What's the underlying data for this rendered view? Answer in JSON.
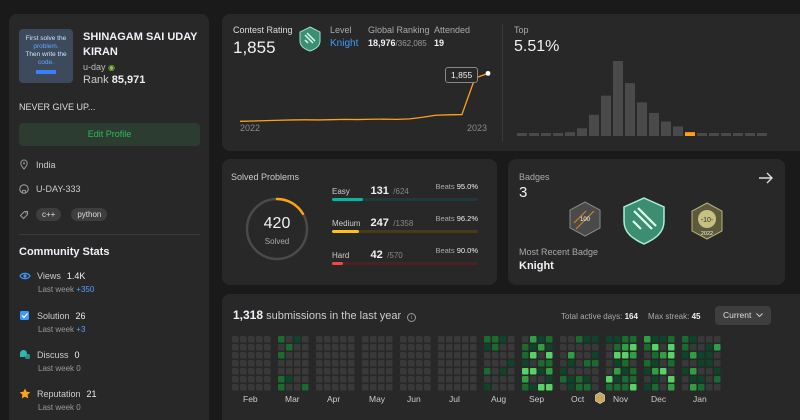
{
  "profile": {
    "avatar_lines": [
      "First solve the",
      "problem.",
      "Then write the",
      "code."
    ],
    "name_line1": "SHINAGAM SAI UDAY",
    "name_line2": "KIRAN",
    "username": "u-day",
    "rank_label": "Rank",
    "rank_value": "85,971",
    "bio": "NEVER GIVE UP...",
    "edit_label": "Edit Profile",
    "location": "India",
    "github": "U-DAY-333",
    "skills": [
      "c++",
      "python"
    ]
  },
  "community": {
    "title": "Community Stats",
    "stats": [
      {
        "label": "Views",
        "value": "1.4K",
        "last_week": "Last week",
        "delta": "+350",
        "icon": "eye-icon",
        "color": "#3b9cff"
      },
      {
        "label": "Solution",
        "value": "26",
        "last_week": "Last week",
        "delta": "+3",
        "icon": "solution-icon",
        "color": "#3b9cff"
      },
      {
        "label": "Discuss",
        "value": "0",
        "last_week": "Last week",
        "delta": "0",
        "icon": "discuss-icon",
        "color": "#2cbbb1"
      },
      {
        "label": "Reputation",
        "value": "21",
        "last_week": "Last week",
        "delta": "0",
        "icon": "star-icon",
        "color": "#ffa116"
      }
    ]
  },
  "contest": {
    "rating_label": "Contest Rating",
    "rating_value": "1,855",
    "level_label": "Level",
    "level_value": "Knight",
    "global_label": "Global Ranking",
    "global_rank": "18,976",
    "global_total": "/362,085",
    "attended_label": "Attended",
    "attended_value": "19",
    "tooltip": "1,855",
    "x_start": "2022",
    "x_end": "2023",
    "rating_series": [
      1500,
      1502,
      1505,
      1508,
      1510,
      1511,
      1510,
      1512,
      1514,
      1513,
      1515,
      1516,
      1514,
      1518,
      1530,
      1545,
      1548,
      1550,
      1820,
      1855
    ],
    "top_label": "Top",
    "top_value": "5.51%",
    "top_hist": [
      3,
      3,
      3,
      3,
      4,
      8,
      22,
      42,
      78,
      55,
      35,
      24,
      15,
      10,
      4,
      3,
      3,
      3,
      3,
      3,
      3
    ],
    "top_highlight_index": 14
  },
  "solved": {
    "title": "Solved Problems",
    "total": "420",
    "total_label": "Solved",
    "ring_fraction": 0.165,
    "difficulties": [
      {
        "label": "Easy",
        "solved": "131",
        "total": "/624",
        "beats_label": "Beats",
        "beats": "95.0%",
        "fraction": 0.21,
        "color": "#00b8a3",
        "track": "#1f3b37"
      },
      {
        "label": "Medium",
        "solved": "247",
        "total": "/1358",
        "beats_label": "Beats",
        "beats": "96.2%",
        "fraction": 0.182,
        "color": "#ffc01e",
        "track": "#4a3b16"
      },
      {
        "label": "Hard",
        "solved": "42",
        "total": "/570",
        "beats_label": "Beats",
        "beats": "90.0%",
        "fraction": 0.074,
        "color": "#ef4743",
        "track": "#4a2222"
      }
    ]
  },
  "badges": {
    "title": "Badges",
    "count": "3",
    "recent_label": "Most Recent Badge",
    "recent_value": "Knight",
    "badge_texts": [
      "100",
      "-10-",
      "2022"
    ]
  },
  "heatmap": {
    "count": "1,318",
    "title_suffix": "submissions in the last year",
    "active_label": "Total active days:",
    "active_value": "164",
    "streak_label": "Max streak:",
    "streak_value": "45",
    "select_value": "Current",
    "months": [
      "Feb",
      "Mar",
      "Apr",
      "May",
      "Jun",
      "Jul",
      "Aug",
      "Sep",
      "Oct",
      "Nov",
      "Dec",
      "Jan"
    ],
    "colors": [
      "#393939",
      "#0e4429",
      "#196c2e",
      "#2ea043",
      "#56d364"
    ]
  }
}
